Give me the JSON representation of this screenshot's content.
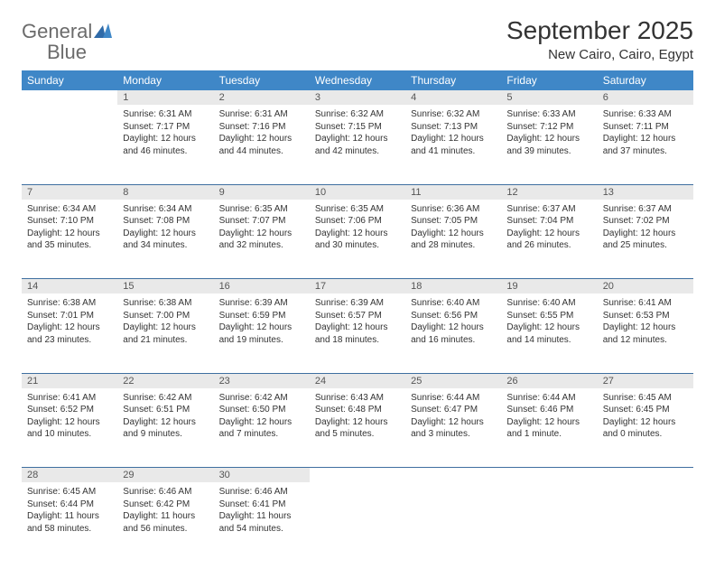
{
  "brand": {
    "name1": "General",
    "name2": "Blue"
  },
  "title": "September 2025",
  "location": "New Cairo, Cairo, Egypt",
  "colors": {
    "header_bg": "#3f87c7",
    "header_text": "#ffffff",
    "daynum_bg": "#e9e9e9",
    "row_border": "#3f6fa0",
    "body_text": "#333333",
    "logo_gray": "#6b6b6b",
    "logo_blue": "#3f87c7",
    "page_bg": "#ffffff"
  },
  "typography": {
    "title_fontsize": 28,
    "location_fontsize": 15,
    "weekday_fontsize": 12,
    "daynum_fontsize": 11,
    "cell_fontsize": 10,
    "logo_fontsize": 22
  },
  "weekdays": [
    "Sunday",
    "Monday",
    "Tuesday",
    "Wednesday",
    "Thursday",
    "Friday",
    "Saturday"
  ],
  "weeks": [
    [
      null,
      {
        "day": "1",
        "sunrise": "Sunrise: 6:31 AM",
        "sunset": "Sunset: 7:17 PM",
        "day1": "Daylight: 12 hours",
        "day2": "and 46 minutes."
      },
      {
        "day": "2",
        "sunrise": "Sunrise: 6:31 AM",
        "sunset": "Sunset: 7:16 PM",
        "day1": "Daylight: 12 hours",
        "day2": "and 44 minutes."
      },
      {
        "day": "3",
        "sunrise": "Sunrise: 6:32 AM",
        "sunset": "Sunset: 7:15 PM",
        "day1": "Daylight: 12 hours",
        "day2": "and 42 minutes."
      },
      {
        "day": "4",
        "sunrise": "Sunrise: 6:32 AM",
        "sunset": "Sunset: 7:13 PM",
        "day1": "Daylight: 12 hours",
        "day2": "and 41 minutes."
      },
      {
        "day": "5",
        "sunrise": "Sunrise: 6:33 AM",
        "sunset": "Sunset: 7:12 PM",
        "day1": "Daylight: 12 hours",
        "day2": "and 39 minutes."
      },
      {
        "day": "6",
        "sunrise": "Sunrise: 6:33 AM",
        "sunset": "Sunset: 7:11 PM",
        "day1": "Daylight: 12 hours",
        "day2": "and 37 minutes."
      }
    ],
    [
      {
        "day": "7",
        "sunrise": "Sunrise: 6:34 AM",
        "sunset": "Sunset: 7:10 PM",
        "day1": "Daylight: 12 hours",
        "day2": "and 35 minutes."
      },
      {
        "day": "8",
        "sunrise": "Sunrise: 6:34 AM",
        "sunset": "Sunset: 7:08 PM",
        "day1": "Daylight: 12 hours",
        "day2": "and 34 minutes."
      },
      {
        "day": "9",
        "sunrise": "Sunrise: 6:35 AM",
        "sunset": "Sunset: 7:07 PM",
        "day1": "Daylight: 12 hours",
        "day2": "and 32 minutes."
      },
      {
        "day": "10",
        "sunrise": "Sunrise: 6:35 AM",
        "sunset": "Sunset: 7:06 PM",
        "day1": "Daylight: 12 hours",
        "day2": "and 30 minutes."
      },
      {
        "day": "11",
        "sunrise": "Sunrise: 6:36 AM",
        "sunset": "Sunset: 7:05 PM",
        "day1": "Daylight: 12 hours",
        "day2": "and 28 minutes."
      },
      {
        "day": "12",
        "sunrise": "Sunrise: 6:37 AM",
        "sunset": "Sunset: 7:04 PM",
        "day1": "Daylight: 12 hours",
        "day2": "and 26 minutes."
      },
      {
        "day": "13",
        "sunrise": "Sunrise: 6:37 AM",
        "sunset": "Sunset: 7:02 PM",
        "day1": "Daylight: 12 hours",
        "day2": "and 25 minutes."
      }
    ],
    [
      {
        "day": "14",
        "sunrise": "Sunrise: 6:38 AM",
        "sunset": "Sunset: 7:01 PM",
        "day1": "Daylight: 12 hours",
        "day2": "and 23 minutes."
      },
      {
        "day": "15",
        "sunrise": "Sunrise: 6:38 AM",
        "sunset": "Sunset: 7:00 PM",
        "day1": "Daylight: 12 hours",
        "day2": "and 21 minutes."
      },
      {
        "day": "16",
        "sunrise": "Sunrise: 6:39 AM",
        "sunset": "Sunset: 6:59 PM",
        "day1": "Daylight: 12 hours",
        "day2": "and 19 minutes."
      },
      {
        "day": "17",
        "sunrise": "Sunrise: 6:39 AM",
        "sunset": "Sunset: 6:57 PM",
        "day1": "Daylight: 12 hours",
        "day2": "and 18 minutes."
      },
      {
        "day": "18",
        "sunrise": "Sunrise: 6:40 AM",
        "sunset": "Sunset: 6:56 PM",
        "day1": "Daylight: 12 hours",
        "day2": "and 16 minutes."
      },
      {
        "day": "19",
        "sunrise": "Sunrise: 6:40 AM",
        "sunset": "Sunset: 6:55 PM",
        "day1": "Daylight: 12 hours",
        "day2": "and 14 minutes."
      },
      {
        "day": "20",
        "sunrise": "Sunrise: 6:41 AM",
        "sunset": "Sunset: 6:53 PM",
        "day1": "Daylight: 12 hours",
        "day2": "and 12 minutes."
      }
    ],
    [
      {
        "day": "21",
        "sunrise": "Sunrise: 6:41 AM",
        "sunset": "Sunset: 6:52 PM",
        "day1": "Daylight: 12 hours",
        "day2": "and 10 minutes."
      },
      {
        "day": "22",
        "sunrise": "Sunrise: 6:42 AM",
        "sunset": "Sunset: 6:51 PM",
        "day1": "Daylight: 12 hours",
        "day2": "and 9 minutes."
      },
      {
        "day": "23",
        "sunrise": "Sunrise: 6:42 AM",
        "sunset": "Sunset: 6:50 PM",
        "day1": "Daylight: 12 hours",
        "day2": "and 7 minutes."
      },
      {
        "day": "24",
        "sunrise": "Sunrise: 6:43 AM",
        "sunset": "Sunset: 6:48 PM",
        "day1": "Daylight: 12 hours",
        "day2": "and 5 minutes."
      },
      {
        "day": "25",
        "sunrise": "Sunrise: 6:44 AM",
        "sunset": "Sunset: 6:47 PM",
        "day1": "Daylight: 12 hours",
        "day2": "and 3 minutes."
      },
      {
        "day": "26",
        "sunrise": "Sunrise: 6:44 AM",
        "sunset": "Sunset: 6:46 PM",
        "day1": "Daylight: 12 hours",
        "day2": "and 1 minute."
      },
      {
        "day": "27",
        "sunrise": "Sunrise: 6:45 AM",
        "sunset": "Sunset: 6:45 PM",
        "day1": "Daylight: 12 hours",
        "day2": "and 0 minutes."
      }
    ],
    [
      {
        "day": "28",
        "sunrise": "Sunrise: 6:45 AM",
        "sunset": "Sunset: 6:44 PM",
        "day1": "Daylight: 11 hours",
        "day2": "and 58 minutes."
      },
      {
        "day": "29",
        "sunrise": "Sunrise: 6:46 AM",
        "sunset": "Sunset: 6:42 PM",
        "day1": "Daylight: 11 hours",
        "day2": "and 56 minutes."
      },
      {
        "day": "30",
        "sunrise": "Sunrise: 6:46 AM",
        "sunset": "Sunset: 6:41 PM",
        "day1": "Daylight: 11 hours",
        "day2": "and 54 minutes."
      },
      null,
      null,
      null,
      null
    ]
  ]
}
